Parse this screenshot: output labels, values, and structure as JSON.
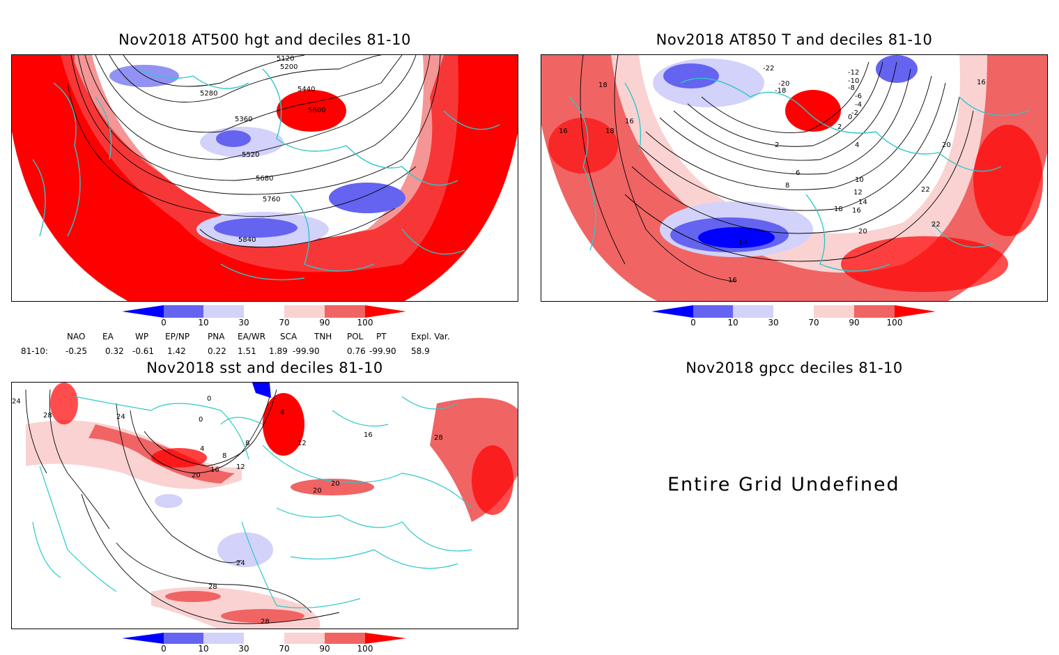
{
  "panels": {
    "hgt": {
      "title": "Nov2018 AT500 hgt and deciles 81-10",
      "contour_labels": [
        "5120",
        "5200",
        "5280",
        "5440",
        "5600",
        "5360",
        "5520",
        "5680",
        "5760",
        "5840"
      ]
    },
    "t850": {
      "title": "Nov2018 AT850 T and deciles 81-10",
      "contour_labels": [
        "18",
        "16",
        "18",
        "16",
        "-12",
        "-10",
        "-8",
        "-6",
        "-4",
        "-2",
        "0",
        "2",
        "4",
        "2",
        "6",
        "8",
        "10",
        "12",
        "14",
        "16",
        "18",
        "20",
        "22",
        "22",
        "20",
        "16",
        "14",
        "16",
        "-20",
        "-18",
        "-22"
      ]
    },
    "sst": {
      "title": "Nov2018 sst and deciles 81-10",
      "contour_labels": [
        "24",
        "28",
        "24",
        "0",
        "4",
        "8",
        "12",
        "16",
        "20",
        "20",
        "20",
        "24",
        "28",
        "28",
        "28",
        "4",
        "8",
        "12",
        "16",
        "0"
      ]
    },
    "gpcc": {
      "title": "Nov2018 gpcc deciles 81-10",
      "message": "Entire Grid Undefined"
    }
  },
  "colorbar": {
    "ticks": [
      "0",
      "10",
      "30",
      "70",
      "90",
      "100"
    ],
    "colors": {
      "dec_0_10": "#0000ff",
      "dec_10_30": "#6464f0",
      "dec_30_50": "#d2d2fa",
      "dec_50_70": "#ffffff",
      "dec_70_90": "#fad2d2",
      "dec_90_95": "#f06464",
      "dec_95_100": "#ff0000"
    }
  },
  "indices": {
    "headers": [
      "NAO",
      "EA",
      "WP",
      "EP/NP",
      "PNA",
      "EA/WR",
      "SCA",
      "TNH",
      "POL",
      "PT",
      "Expl. Var."
    ],
    "row_label": "81-10:",
    "values": [
      "-0.25",
      "0.32",
      "-0.61",
      "1.42",
      "0.22",
      "1.51",
      "1.89",
      "-99.90",
      "0.76",
      "-99.90",
      "58.9"
    ]
  },
  "map_style": {
    "coast_color": "#2cc8c8",
    "contour_color": "#000000"
  }
}
